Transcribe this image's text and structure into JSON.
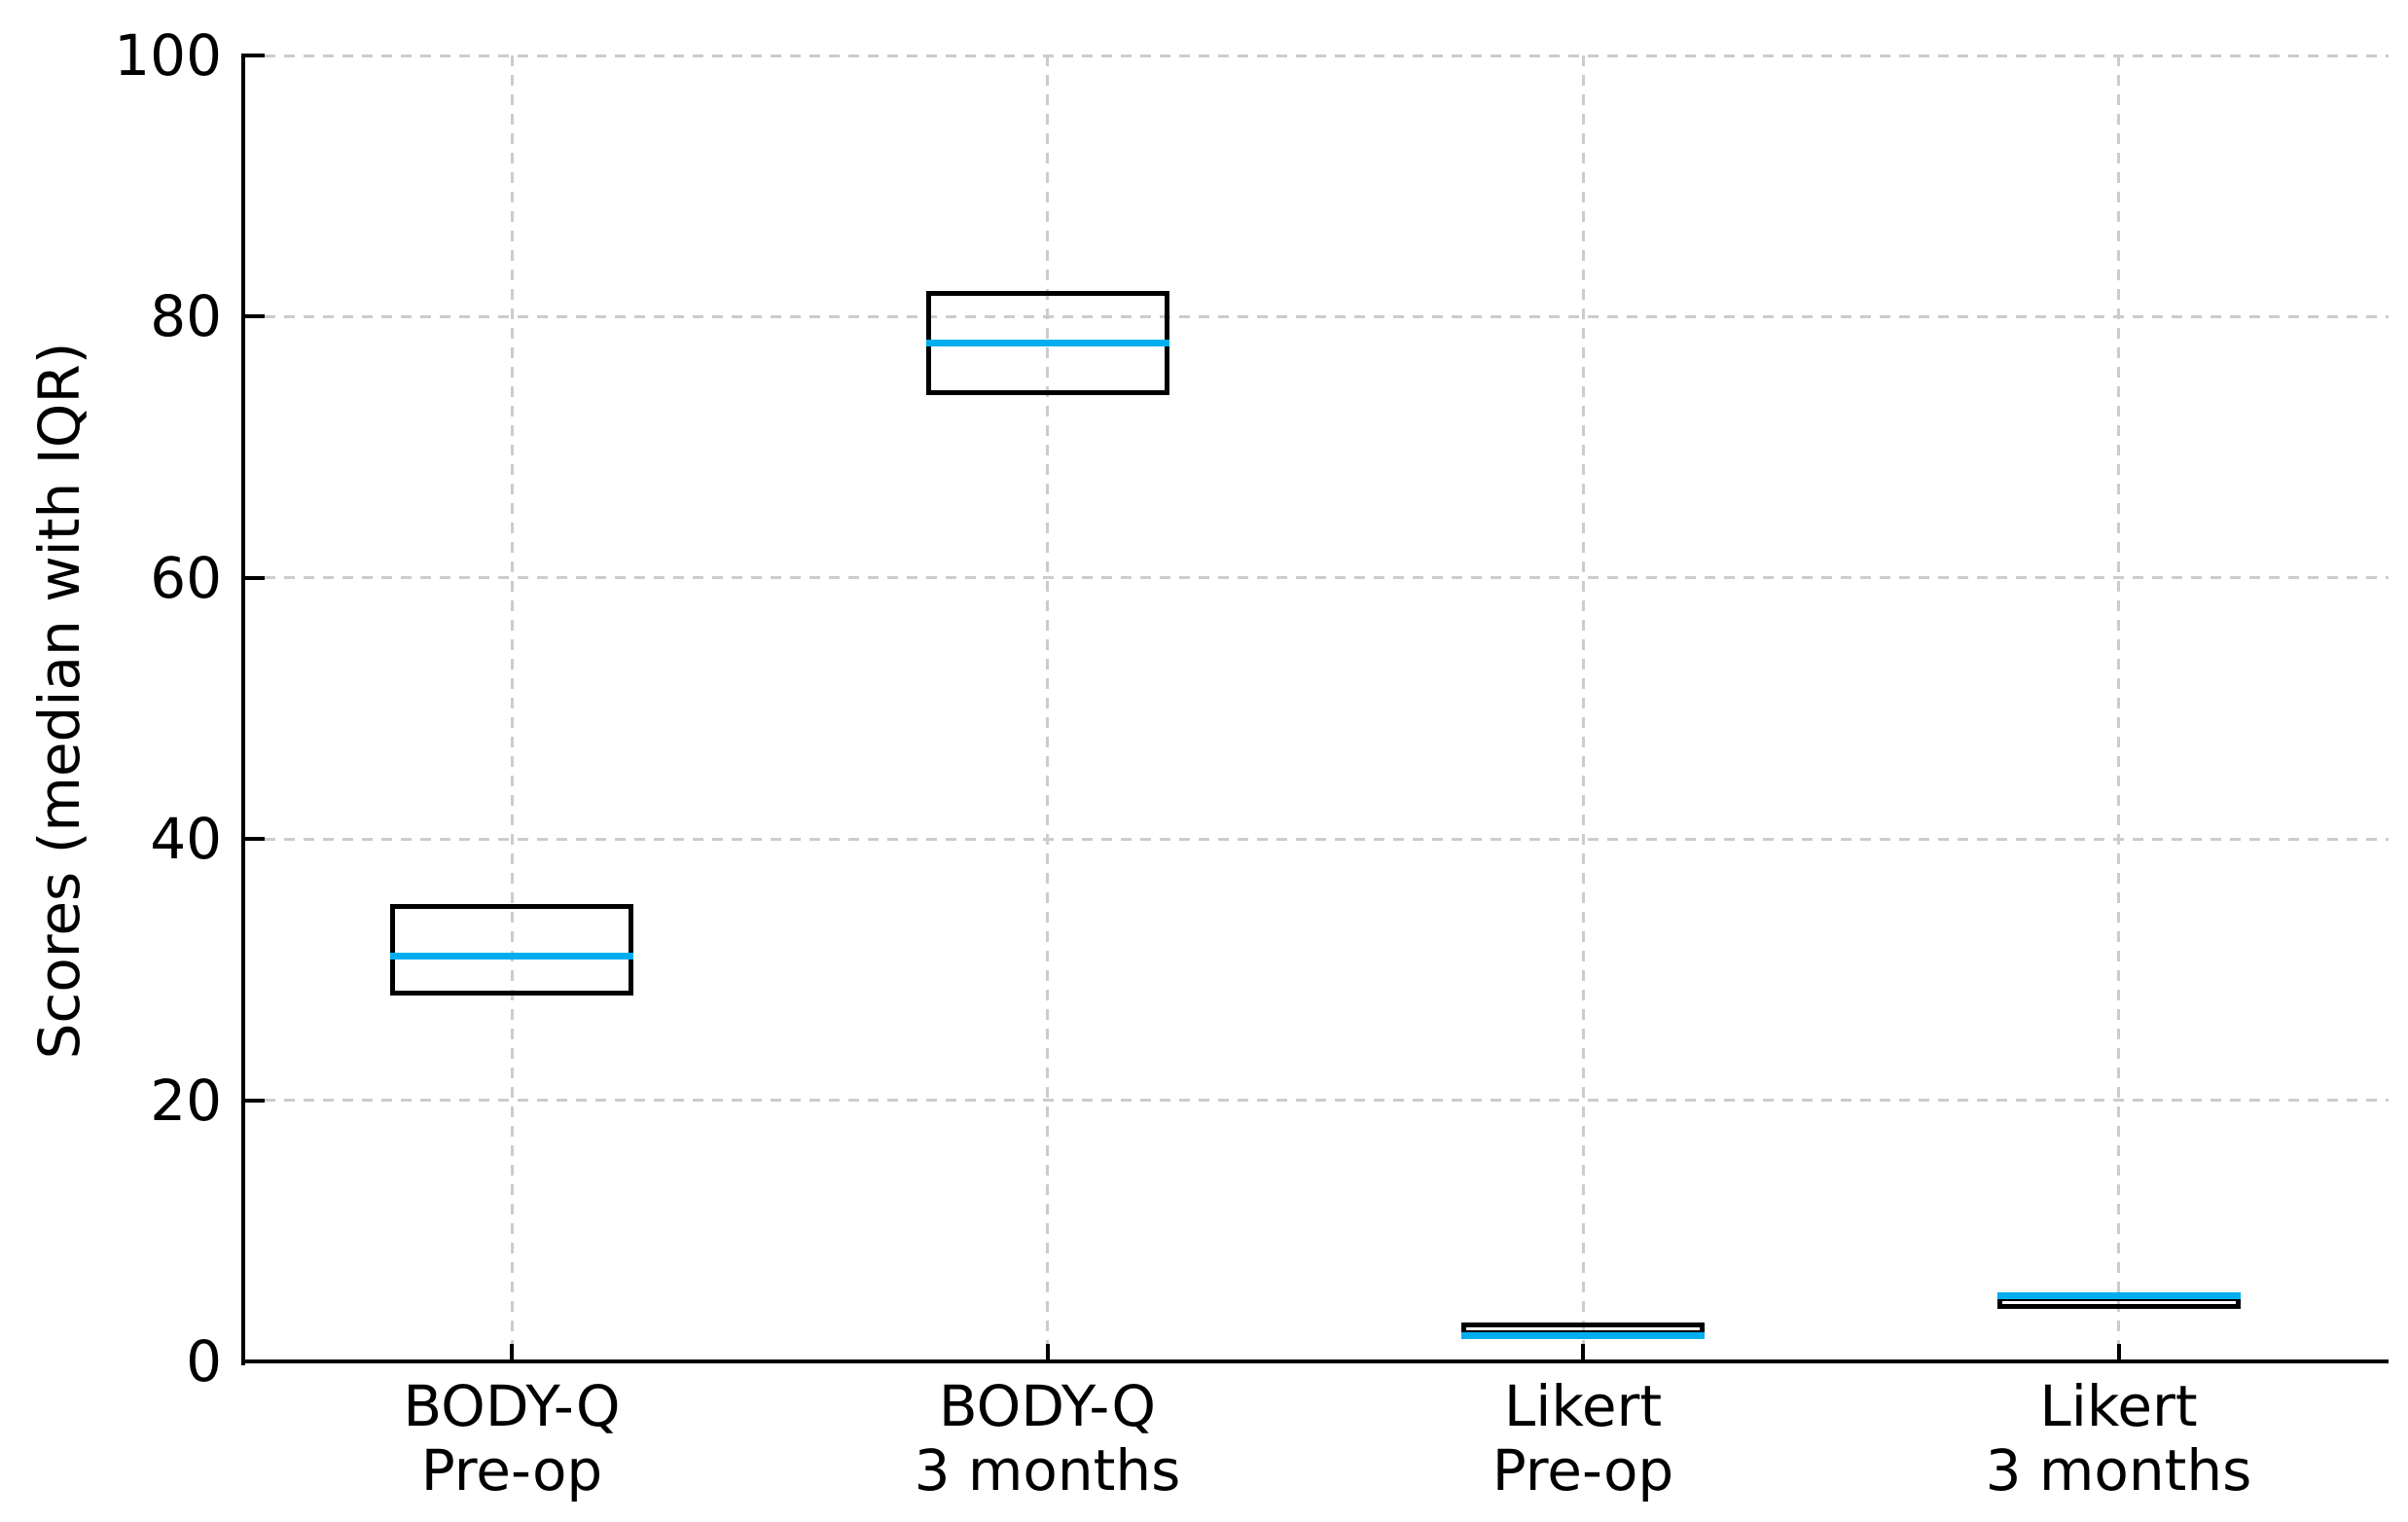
{
  "chart_data": {
    "type": "boxplot",
    "title": "",
    "xlabel": "",
    "ylabel": "Scores (median with IQR)",
    "ylim": [
      0,
      100
    ],
    "yticks": [
      0,
      20,
      40,
      60,
      80,
      100
    ],
    "grid": {
      "visible": true,
      "style": "dashed",
      "axes": "both"
    },
    "legend_position": "none",
    "categories": [
      "BODY-Q\nPre-op",
      "BODY-Q\n3 months",
      "Likert\nPre-op",
      "Likert\n3 months"
    ],
    "series": [
      {
        "name": "BODY-Q Pre-op",
        "q1": 28,
        "median": 31,
        "q3": 35
      },
      {
        "name": "BODY-Q 3 months",
        "q1": 74,
        "median": 78,
        "q3": 82
      },
      {
        "name": "Likert Pre-op",
        "q1": 2,
        "median": 2,
        "q3": 3
      },
      {
        "name": "Likert 3 months",
        "q1": 4,
        "median": 5,
        "q3": 5
      }
    ],
    "colors": {
      "box_edge": "#000000",
      "median_line": "#00AEEF",
      "gridline": "#cccccc",
      "axis": "#000000",
      "text": "#000000",
      "background": "#ffffff"
    }
  }
}
